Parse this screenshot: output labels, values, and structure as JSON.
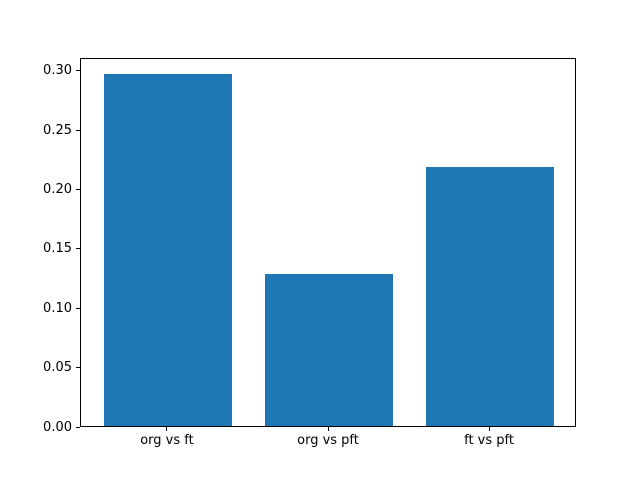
{
  "figure": {
    "background": "#ffffff"
  },
  "chart_data": {
    "type": "bar",
    "categories": [
      "org vs ft",
      "org vs pft",
      "ft vs pft"
    ],
    "values": [
      0.296,
      0.128,
      0.218
    ],
    "title": "",
    "xlabel": "",
    "ylabel": "",
    "ylim": [
      0,
      0.311
    ],
    "xlim": [
      -0.54,
      2.54
    ],
    "bar_width": 0.8,
    "yticks": [
      0.0,
      0.05,
      0.1,
      0.15,
      0.2,
      0.25,
      0.3
    ],
    "ytick_labels": [
      "0.00",
      "0.05",
      "0.10",
      "0.15",
      "0.20",
      "0.25",
      "0.30"
    ],
    "bar_color": "#1f77b4",
    "spine_color": "#000000",
    "text_color": "#000000",
    "grid": false,
    "legend": null
  }
}
